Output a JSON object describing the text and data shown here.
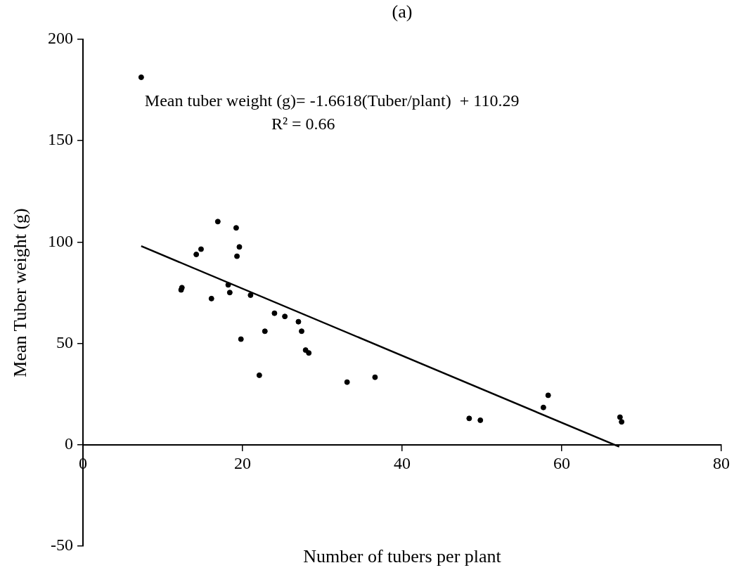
{
  "chart_data": {
    "type": "scatter",
    "title": "(a)",
    "xlabel": "Number of tubers per plant",
    "ylabel": "Mean Tuber weight (g)",
    "annotations": [
      "Mean tuber weight (g)= -1.6618(Tuber/plant)  + 110.29",
      "R² = 0.66"
    ],
    "xlim": [
      0,
      80
    ],
    "xticks": [
      0,
      20,
      40,
      60,
      80
    ],
    "ylim": [
      -50,
      200
    ],
    "yticks": [
      -50,
      0,
      50,
      100,
      150,
      200
    ],
    "grid": false,
    "legend": false,
    "marker": "circle",
    "series": [
      {
        "type": "scatter",
        "color": "#000000",
        "x": [
          7.3,
          12.3,
          12.4,
          14.2,
          14.8,
          16.9,
          16.1,
          19.2,
          19.6,
          19.3,
          18.2,
          18.4,
          21.0,
          19.8,
          24.0,
          25.3,
          27.0,
          27.4,
          22.8,
          27.9,
          28.3,
          22.1,
          33.1,
          36.6,
          48.4,
          49.8,
          58.3,
          57.7,
          67.3,
          67.5
        ],
        "values": [
          181.3,
          76.4,
          77.5,
          93.9,
          96.5,
          110.1,
          72.1,
          107,
          97.6,
          93,
          78.9,
          75.1,
          73.8,
          52.1,
          64.9,
          63.3,
          60.7,
          56,
          56,
          46.7,
          45.3,
          34.3,
          30.9,
          33.3,
          13.0,
          12.1,
          24.4,
          18.4,
          13.6,
          11.3
        ]
      },
      {
        "type": "line",
        "color": "#000000",
        "line_style": "solid",
        "marker": "none",
        "x": [
          7.3,
          67.2
        ],
        "values": [
          98,
          -1
        ]
      }
    ]
  }
}
